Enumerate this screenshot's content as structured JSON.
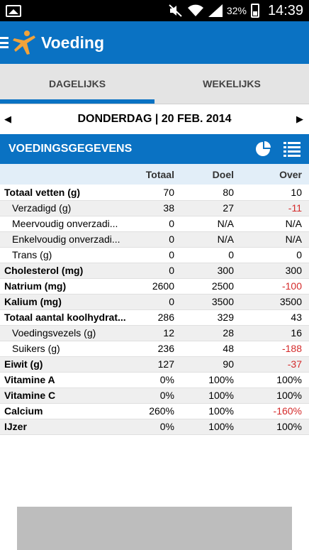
{
  "status": {
    "battery": "32%",
    "time": "14:39",
    "icons": [
      "gallery-icon",
      "mute-icon",
      "wifi-icon",
      "signal-icon",
      "battery-icon"
    ]
  },
  "header": {
    "title": "Voeding",
    "accent": "#0a72c3"
  },
  "tabs": [
    {
      "label": "DAGELIJKS",
      "active": true
    },
    {
      "label": "WEKELIJKS",
      "active": false
    }
  ],
  "date": {
    "label": "DONDERDAG | 20 FEB. 2014"
  },
  "section": {
    "title": "VOEDINGSGEGEVENS",
    "icons": [
      "pie-chart-icon",
      "list-icon"
    ]
  },
  "table": {
    "columns": [
      "",
      "Totaal",
      "Doel",
      "Over"
    ],
    "rows": [
      {
        "name": "Totaal vetten (g)",
        "level": "main",
        "totaal": "70",
        "doel": "80",
        "over": "10",
        "over_negative": false
      },
      {
        "name": "Verzadigd (g)",
        "level": "sub",
        "totaal": "38",
        "doel": "27",
        "over": "-11",
        "over_negative": true
      },
      {
        "name": "Meervoudig onverzadi...",
        "level": "sub",
        "totaal": "0",
        "doel": "N/A",
        "over": "N/A",
        "over_negative": false
      },
      {
        "name": "Enkelvoudig onverzadi...",
        "level": "sub",
        "totaal": "0",
        "doel": "N/A",
        "over": "N/A",
        "over_negative": false
      },
      {
        "name": "Trans (g)",
        "level": "sub",
        "totaal": "0",
        "doel": "0",
        "over": "0",
        "over_negative": false
      },
      {
        "name": "Cholesterol (mg)",
        "level": "main",
        "totaal": "0",
        "doel": "300",
        "over": "300",
        "over_negative": false
      },
      {
        "name": "Natrium (mg)",
        "level": "main",
        "totaal": "2600",
        "doel": "2500",
        "over": "-100",
        "over_negative": true
      },
      {
        "name": "Kalium (mg)",
        "level": "main",
        "totaal": "0",
        "doel": "3500",
        "over": "3500",
        "over_negative": false
      },
      {
        "name": "Totaal aantal koolhydrat...",
        "level": "main",
        "totaal": "286",
        "doel": "329",
        "over": "43",
        "over_negative": false
      },
      {
        "name": "Voedingsvezels (g)",
        "level": "sub",
        "totaal": "12",
        "doel": "28",
        "over": "16",
        "over_negative": false
      },
      {
        "name": "Suikers (g)",
        "level": "sub",
        "totaal": "236",
        "doel": "48",
        "over": "-188",
        "over_negative": true
      },
      {
        "name": "Eiwit (g)",
        "level": "main",
        "totaal": "127",
        "doel": "90",
        "over": "-37",
        "over_negative": true
      },
      {
        "name": "Vitamine A",
        "level": "main",
        "totaal": "0%",
        "doel": "100%",
        "over": "100%",
        "over_negative": false
      },
      {
        "name": "Vitamine C",
        "level": "main",
        "totaal": "0%",
        "doel": "100%",
        "over": "100%",
        "over_negative": false
      },
      {
        "name": "Calcium",
        "level": "main",
        "totaal": "260%",
        "doel": "100%",
        "over": "-160%",
        "over_negative": true
      },
      {
        "name": "IJzer",
        "level": "main",
        "totaal": "0%",
        "doel": "100%",
        "over": "100%",
        "over_negative": false
      }
    ],
    "negative_color": "#d42a2a"
  }
}
